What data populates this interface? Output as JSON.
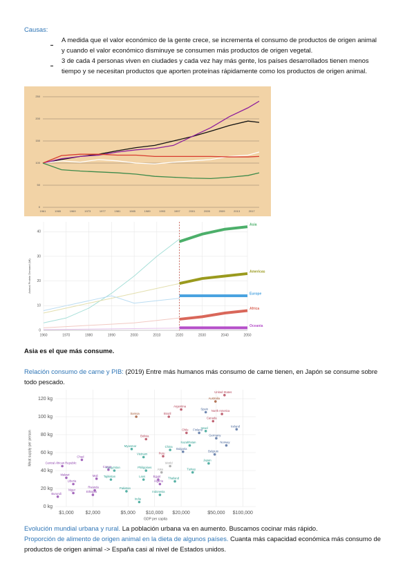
{
  "document": {
    "causes_title": "Causas:",
    "bullets": [
      "A medida que el valor económico de la gente crece, se incrementa el consumo de productos de origen animal y cuando el valor económico disminuye se consumen más productos de origen vegetal.",
      "3 de cada 4 personas viven en ciudades y cada vez hay más gente, los países desarrollados tienen menos tiempo y se necesitan productos que aporten proteínas rápidamente como los productos de origen animal."
    ],
    "caption": "Asia es el que más consume.",
    "paragraphs": [
      {
        "highlight": "Relación consumo de carne y PIB:",
        "text": " (2019) Entre más humanos más consumo de carne tienen, en Japón se consume sobre todo pescado."
      },
      {
        "highlight": "Evolución mundial urbana y rural.",
        "text": " La población urbana va en aumento. Buscamos cocinar más rápido."
      },
      {
        "highlight": "Proporción de alimento de origen animal en la dieta de algunos países.",
        "text": " Cuanta más capacidad económica más consumo de productos de origen animal -> España casi al nivel de Estados unidos."
      }
    ]
  },
  "chart_data": [
    {
      "type": "line",
      "background": "#f2d3a6",
      "x": [
        1961,
        1966,
        1971,
        1976,
        1981,
        1986,
        1991,
        1996,
        2001,
        2006,
        2011,
        2016,
        2019
      ],
      "xlim": [
        1961,
        2019
      ],
      "xticks": [
        1961,
        1965,
        1969,
        1973,
        1977,
        1981,
        1985,
        1989,
        1993,
        1997,
        2001,
        2005,
        2009,
        2013,
        2017
      ],
      "ylim": [
        0,
        250
      ],
      "yticks": [
        0,
        50,
        100,
        150,
        200,
        250
      ],
      "grid": true,
      "series": [
        {
          "color": "#111111",
          "values": [
            100,
            108,
            115,
            120,
            128,
            135,
            140,
            150,
            160,
            172,
            185,
            195,
            192
          ]
        },
        {
          "color": "#ffffff",
          "values": [
            100,
            105,
            102,
            108,
            105,
            100,
            98,
            102,
            105,
            108,
            115,
            118,
            125
          ]
        },
        {
          "color": "#8e1f9c",
          "values": [
            100,
            110,
            115,
            118,
            125,
            130,
            133,
            140,
            160,
            180,
            205,
            225,
            240
          ]
        },
        {
          "color": "#d83a2e",
          "values": [
            100,
            117,
            120,
            120,
            118,
            118,
            115,
            115,
            115,
            115,
            114,
            114,
            115
          ]
        },
        {
          "color": "#3d8a4a",
          "values": [
            100,
            85,
            82,
            80,
            78,
            75,
            70,
            68,
            66,
            65,
            68,
            72,
            78
          ]
        }
      ]
    },
    {
      "type": "projection",
      "y_label": "Animal Protein Demand (Mt)",
      "x": [
        1960,
        1970,
        1980,
        1990,
        2000,
        2010,
        2020,
        2030,
        2040,
        2050
      ],
      "xlim": [
        1960,
        2050
      ],
      "xticks": [
        1960,
        1970,
        1980,
        1990,
        2000,
        2010,
        2020,
        2030,
        2040,
        2050
      ],
      "ylim": [
        0,
        44
      ],
      "yticks": [
        0,
        10,
        20,
        30,
        40
      ],
      "grid": true,
      "series": [
        {
          "name": "Asia",
          "color": "#4caf6a",
          "history_color": "#a6dfd8",
          "values": [
            3,
            5,
            9,
            15,
            22,
            30,
            37,
            null,
            null,
            null
          ],
          "projection": [
            null,
            null,
            null,
            null,
            null,
            null,
            36,
            39,
            41,
            42
          ]
        },
        {
          "name": "Americas",
          "color": "#9a9a1e",
          "history_color": "#e3dfae",
          "values": [
            7,
            9,
            11,
            13,
            15,
            17,
            19,
            null,
            null,
            null
          ],
          "projection": [
            null,
            null,
            null,
            null,
            null,
            null,
            19,
            21,
            22,
            23
          ]
        },
        {
          "name": "Europe",
          "color": "#4aa3e0",
          "history_color": "#b9dcf2",
          "values": [
            8,
            10,
            12,
            14,
            11,
            12,
            13,
            null,
            null,
            null
          ],
          "projection": [
            null,
            null,
            null,
            null,
            null,
            null,
            14,
            14,
            14,
            14
          ]
        },
        {
          "name": "Africa",
          "color": "#d9675a",
          "history_color": "#f2c9c2",
          "values": [
            1,
            1.5,
            2,
            2.5,
            3,
            4,
            5,
            null,
            null,
            null
          ],
          "projection": [
            null,
            null,
            null,
            null,
            null,
            null,
            4.5,
            5.5,
            7,
            8
          ]
        },
        {
          "name": "Oceania",
          "color": "#b54fc9",
          "history_color": "#e4c2ea",
          "values": [
            0.3,
            0.4,
            0.5,
            0.6,
            0.7,
            0.8,
            0.9,
            null,
            null,
            null
          ],
          "projection": [
            null,
            null,
            null,
            null,
            null,
            null,
            1,
            1,
            1,
            1
          ]
        }
      ]
    },
    {
      "type": "scatter",
      "x_label": "GDP per capita",
      "y_label": "Meat supply per person",
      "xlog": true,
      "xlim": [
        750,
        140000
      ],
      "ylim": [
        0,
        130
      ],
      "xticks": [
        {
          "value": 1000,
          "label": "$1,000"
        },
        {
          "value": 2000,
          "label": "$2,000"
        },
        {
          "value": 5000,
          "label": "$5,000"
        },
        {
          "value": 10000,
          "label": "$10,000"
        },
        {
          "value": 20000,
          "label": "$20,000"
        },
        {
          "value": 50000,
          "label": "$50,000"
        },
        {
          "value": 100000,
          "label": "$100,000"
        }
      ],
      "yticks": [
        {
          "value": 0,
          "label": "0 kg"
        },
        {
          "value": 20,
          "label": "20 kg"
        },
        {
          "value": 40,
          "label": "40 kg"
        },
        {
          "value": 60,
          "label": "60 kg"
        },
        {
          "value": 80,
          "label": "80 kg"
        },
        {
          "value": 100,
          "label": "100 kg"
        },
        {
          "value": 120,
          "label": "120 kg"
        }
      ],
      "grid": true,
      "series": [
        {
          "color": "#b13e53",
          "labels": [
            "United States",
            "Argentina",
            "Brazil",
            "Bolivia",
            "Chile",
            "Peru",
            "Canada",
            "North America"
          ],
          "x": [
            62000,
            20000,
            14500,
            8000,
            23000,
            12500,
            46000,
            58000
          ],
          "values": [
            124,
            108,
            100,
            75,
            82,
            56,
            95,
            103
          ]
        },
        {
          "color": "#4c6a9c",
          "labels": [
            "Spain",
            "Germany",
            "Norway",
            "Belgium",
            "Bulgaria",
            "Iceland",
            "Finland"
          ],
          "x": [
            38000,
            50000,
            65000,
            48000,
            21000,
            85000,
            32000
          ],
          "values": [
            105,
            76,
            68,
            58,
            61,
            86,
            82
          ]
        },
        {
          "color": "#2a9d8f",
          "labels": [
            "China",
            "Myanmar",
            "Vietnam",
            "Japan",
            "Israel",
            "Kazakhstan",
            "Turkey",
            "Kyrgyzstan",
            "Tajikistan",
            "Philippines",
            "Pakistan",
            "India",
            "Indonesia",
            "Laos",
            "Thailand"
          ],
          "x": [
            15000,
            5500,
            7500,
            41000,
            38000,
            25000,
            27000,
            3500,
            3200,
            8000,
            4800,
            6700,
            11500,
            7500,
            17000
          ],
          "values": [
            63,
            64,
            55,
            48,
            84,
            68,
            38,
            40,
            30,
            40,
            17,
            5,
            13,
            30,
            28
          ]
        },
        {
          "color": "#8e44ad",
          "labels": [
            "Chad",
            "Central African Republic",
            "Congo",
            "Malawi",
            "Mali",
            "Liberia",
            "Ethiopia",
            "Niger",
            "Burundi",
            "Rwanda",
            "Egypt",
            "Algeria"
          ],
          "x": [
            1500,
            900,
            3000,
            1000,
            2200,
            1200,
            2000,
            1200,
            800,
            2100,
            11000,
            11500
          ],
          "values": [
            52,
            45,
            41,
            32,
            31,
            25,
            13,
            15,
            11,
            18,
            30,
            25
          ]
        },
        {
          "color": "#a0522d",
          "labels": [
            "Australia",
            "Samoa"
          ],
          "x": [
            49000,
            6200
          ],
          "values": [
            117,
            100
          ]
        },
        {
          "color": "#9e9e9e",
          "labels": [
            "World",
            "Asia"
          ],
          "x": [
            15000,
            12000
          ],
          "values": [
            45,
            38
          ]
        }
      ]
    }
  ]
}
